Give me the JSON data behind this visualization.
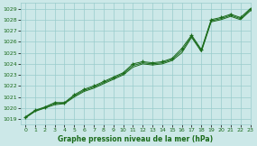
{
  "title": "Graphe pression niveau de la mer (hPa)",
  "bg_color": "#cce8e8",
  "grid_color": "#99cccc",
  "line_color": "#1a6b1a",
  "marker_color": "#1a6b1a",
  "xlim": [
    -0.5,
    23
  ],
  "ylim": [
    1018.5,
    1029.5
  ],
  "xtick_labels": [
    "0",
    "1",
    "2",
    "3",
    "4",
    "5",
    "6",
    "7",
    "8",
    "9",
    "10",
    "11",
    "12",
    "13",
    "14",
    "15",
    "16",
    "17",
    "18",
    "19",
    "20",
    "21",
    "22",
    "23"
  ],
  "yticks": [
    1019,
    1020,
    1021,
    1022,
    1023,
    1024,
    1025,
    1026,
    1027,
    1028,
    1029
  ],
  "series1": [
    1019.2,
    1019.8,
    1020.1,
    1020.5,
    1020.5,
    1021.2,
    1021.7,
    1022.0,
    1022.4,
    1022.8,
    1023.2,
    1024.0,
    1024.2,
    1024.1,
    1024.2,
    1024.5,
    1025.4,
    1026.6,
    1025.3,
    1028.0,
    1028.2,
    1028.5,
    1028.2,
    1029.0
  ],
  "series2": [
    1019.1,
    1019.7,
    1020.0,
    1020.3,
    1020.4,
    1021.0,
    1021.5,
    1021.8,
    1022.2,
    1022.6,
    1023.0,
    1023.7,
    1024.0,
    1023.9,
    1024.0,
    1024.3,
    1025.0,
    1026.4,
    1025.1,
    1027.8,
    1028.0,
    1028.3,
    1028.0,
    1028.8
  ],
  "series3": [
    1019.15,
    1019.75,
    1020.05,
    1020.4,
    1020.45,
    1021.1,
    1021.6,
    1021.9,
    1022.3,
    1022.7,
    1023.1,
    1023.85,
    1024.1,
    1024.0,
    1024.1,
    1024.4,
    1025.2,
    1026.5,
    1025.2,
    1027.9,
    1028.1,
    1028.4,
    1028.1,
    1028.9
  ],
  "marker_x": [
    0,
    1,
    2,
    3,
    4,
    5,
    6,
    7,
    8,
    9,
    10,
    11,
    12,
    13,
    14,
    15,
    16,
    17,
    18,
    19,
    20,
    21,
    22,
    23
  ]
}
